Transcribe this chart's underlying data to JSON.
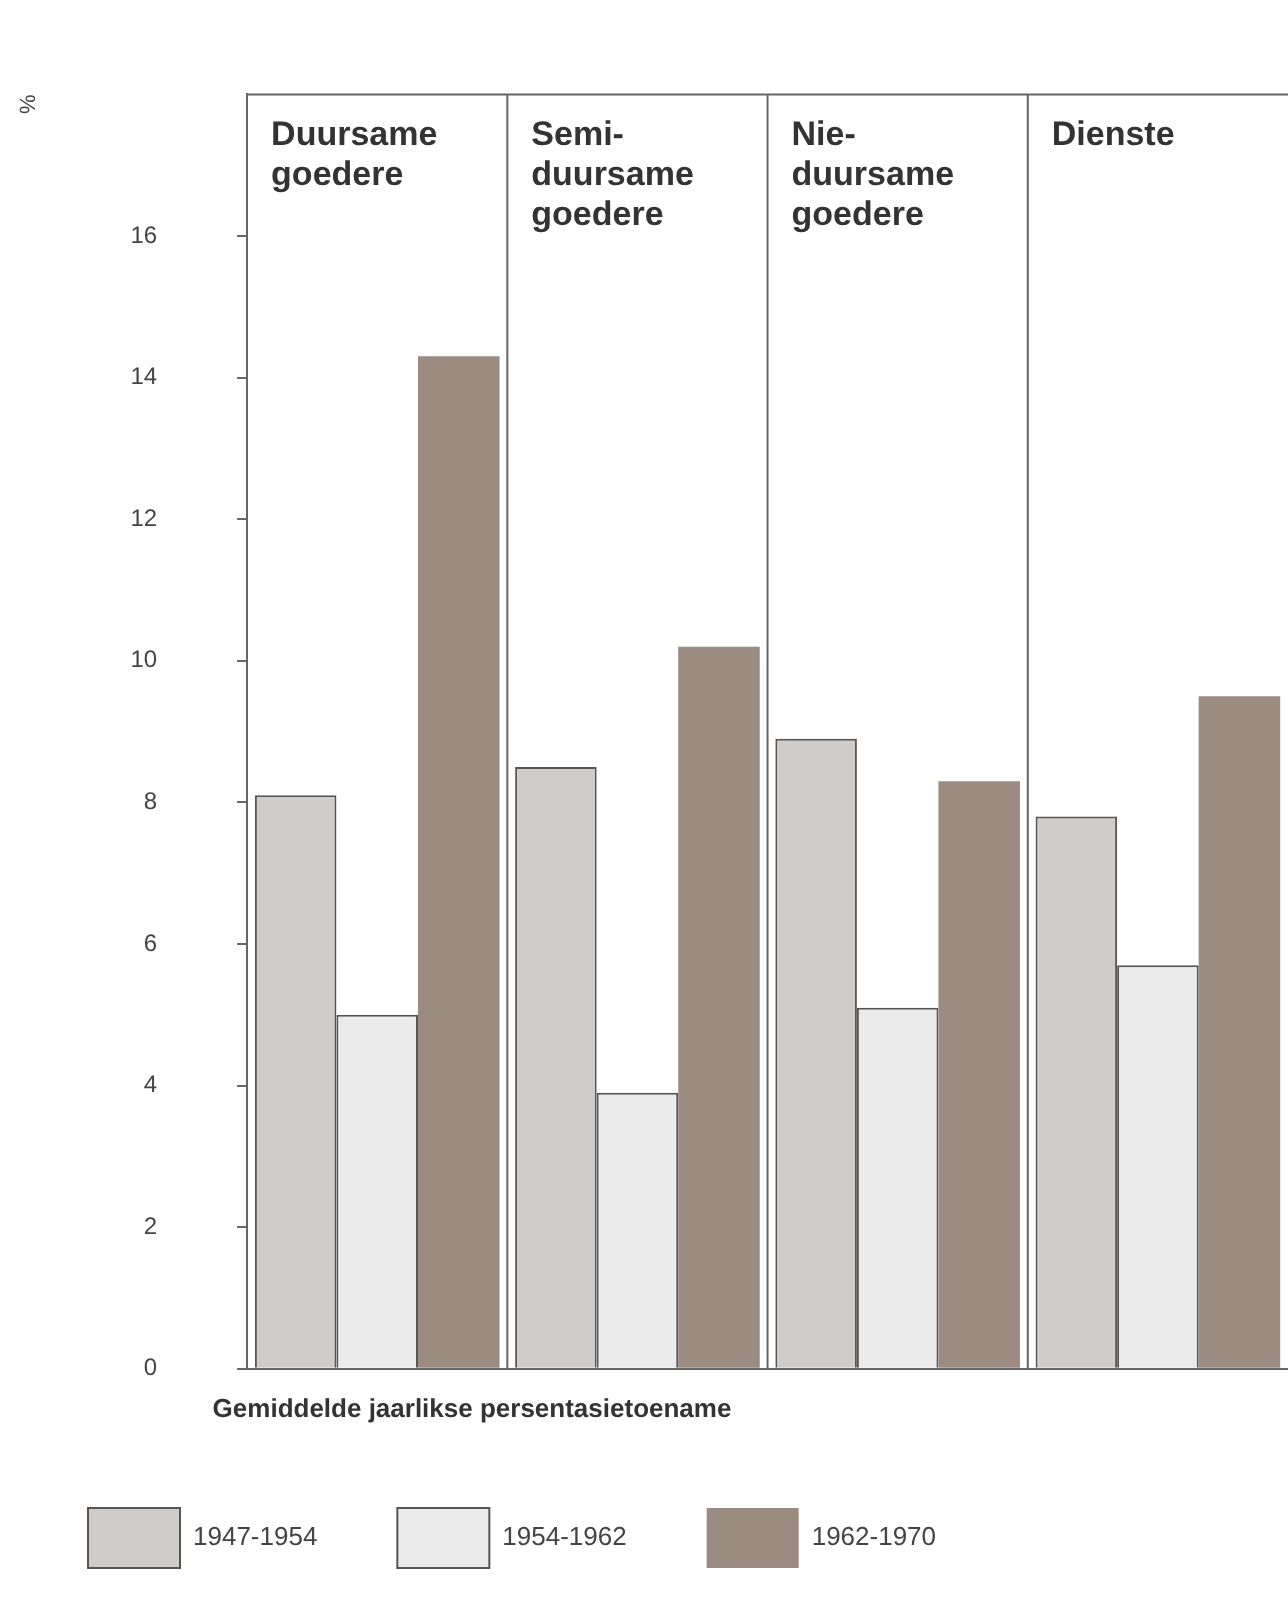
{
  "chart_data": {
    "type": "bar",
    "ylabel": "%",
    "legend_title": "Gemiddelde jaarlikse persentasietoename",
    "categories": [
      "Duursame goedere",
      "Semi-duursame goedere",
      "Nie-duursame goedere",
      "Dienste"
    ],
    "series": [
      {
        "name": "1947-1954",
        "color": "#cfccc9",
        "values": [
          8.1,
          8.5,
          8.9,
          7.8
        ]
      },
      {
        "name": "1954-1962",
        "color": "#ebebeb",
        "values": [
          5.0,
          3.9,
          5.1,
          5.7
        ]
      },
      {
        "name": "1962-1970",
        "color": "#9c8b80",
        "values": [
          14.3,
          10.2,
          8.3,
          9.5
        ]
      }
    ],
    "ylim": [
      0,
      18
    ],
    "yticks": [
      0,
      2,
      4,
      6,
      8,
      10,
      12,
      14,
      16
    ],
    "grid": false,
    "legend": "bottom"
  }
}
